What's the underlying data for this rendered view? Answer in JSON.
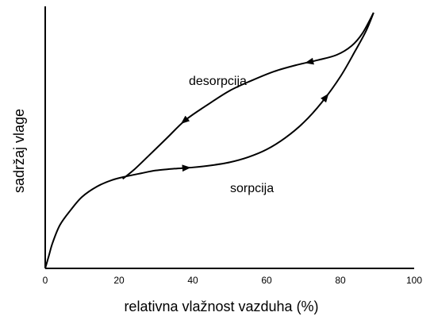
{
  "chart_data": {
    "type": "line",
    "title": "",
    "xlabel": "relativna vlažnost vazduha (%)",
    "ylabel": "sadržaj vlage",
    "xlim": [
      0,
      100
    ],
    "ylim": [
      0,
      100
    ],
    "x_ticks": [
      "0",
      "20",
      "40",
      "60",
      "80",
      "100"
    ],
    "y_ticks": [],
    "grid": false,
    "legend": "none",
    "colors": {
      "line": "#000000",
      "axis": "#000000",
      "background": "#ffffff"
    },
    "series": [
      {
        "name": "sorpcija",
        "direction": "increasing",
        "x": [
          0,
          1,
          2,
          4,
          7,
          10,
          14,
          18,
          22,
          26,
          30,
          35,
          40,
          45,
          50,
          55,
          60,
          65,
          70,
          75,
          80,
          84,
          87,
          89
        ],
        "y": [
          0,
          5,
          10,
          17,
          23,
          28,
          32,
          34.5,
          36,
          37.2,
          38.3,
          39,
          39.5,
          40.3,
          41.5,
          43.5,
          46.5,
          51,
          57,
          65,
          75,
          85,
          93,
          100
        ]
      },
      {
        "name": "desorpcija",
        "direction": "decreasing",
        "x": [
          89,
          86,
          83,
          79,
          74,
          68,
          62,
          56,
          50,
          44,
          38,
          33,
          28,
          24,
          21
        ],
        "y": [
          100,
          92,
          87,
          83.5,
          81.5,
          79.5,
          77,
          73.5,
          69.5,
          64,
          58,
          51,
          44,
          38.5,
          35
        ]
      }
    ]
  }
}
